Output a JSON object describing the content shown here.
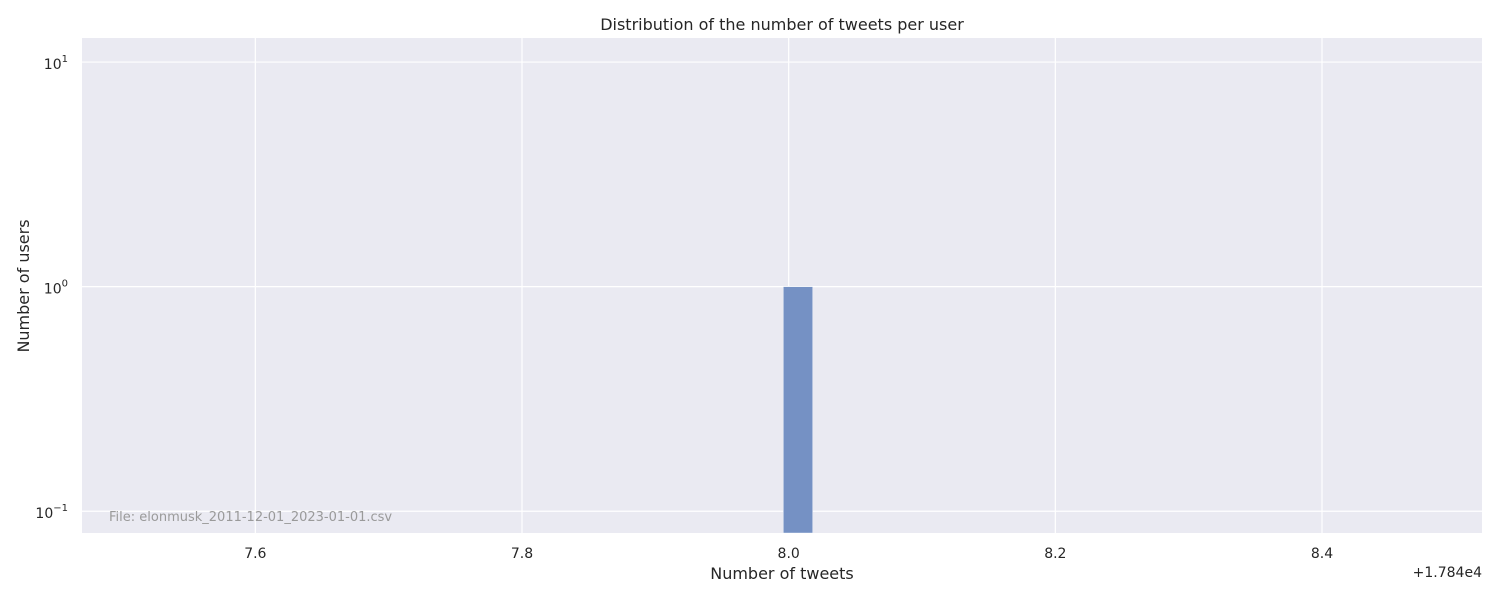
{
  "chart_data": {
    "type": "bar",
    "title": "Distribution of the number of tweets per user",
    "xlabel": "Number of tweets",
    "ylabel": "Number of users",
    "x_offset_label": "+1.784e4",
    "x_ticks": [
      {
        "value": 7.6,
        "label": "7.6"
      },
      {
        "value": 7.8,
        "label": "7.8"
      },
      {
        "value": 8.0,
        "label": "8.0"
      },
      {
        "value": 8.2,
        "label": "8.2"
      },
      {
        "value": 8.4,
        "label": "8.4"
      }
    ],
    "y_ticks": [
      {
        "value": 0.1,
        "base": "10",
        "exp": "−1"
      },
      {
        "value": 1,
        "base": "10",
        "exp": "0"
      },
      {
        "value": 10,
        "base": "10",
        "exp": "1"
      }
    ],
    "xlim": [
      7.47,
      8.52
    ],
    "ylim": [
      0.08,
      12.8
    ],
    "y_scale": "log",
    "grid": true,
    "bars": [
      {
        "x_start": 7.996,
        "x_end": 8.018,
        "value": 1
      }
    ],
    "bar_color": "#7591c4",
    "background_color": "#eaeaf2",
    "annotation": "File: elonmusk_2011-12-01_2023-01-01.csv"
  }
}
